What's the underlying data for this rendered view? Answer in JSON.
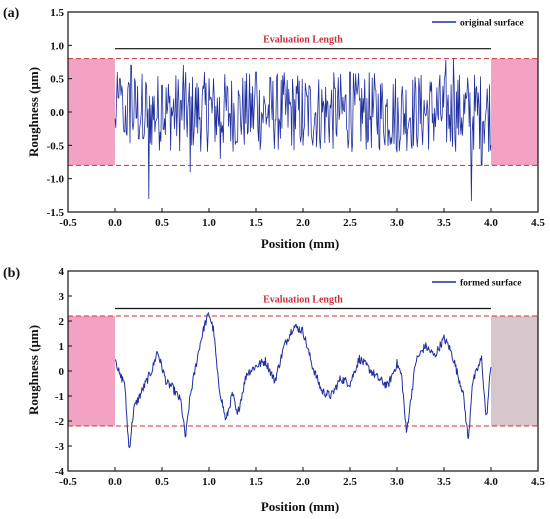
{
  "colors": {
    "signal": "#1f2fa0",
    "band_fill": "#f2a3c4",
    "dashed": "#c8303a",
    "eval_text": "#c8303a",
    "axis": "#111111",
    "right_band_b": "#d7c6cc"
  },
  "chart_data": [
    {
      "type": "line",
      "panel_label": "(a)",
      "xlabel": "Position (mm)",
      "ylabel": "Roughness (μm)",
      "xlim": [
        -0.5,
        4.5
      ],
      "ylim": [
        -1.5,
        1.5
      ],
      "xticks": [
        "-0.5",
        "0.0",
        "0.5",
        "1.0",
        "1.5",
        "2.0",
        "2.5",
        "3.0",
        "3.5",
        "4.0",
        "4.5"
      ],
      "yticks": [
        "-1.5",
        "-1.0",
        "-0.5",
        "0.0",
        "0.5",
        "1.0",
        "1.5"
      ],
      "grid": false,
      "legend_position": "top-right",
      "series": [
        {
          "name": "original surface",
          "x_range": [
            0.0,
            4.0
          ],
          "points_count": 500,
          "profile": "high-frequency random roughness mostly within ±0.75 µm",
          "y_keypoints": [
            [
              0.0,
              -0.1
            ],
            [
              0.05,
              0.5
            ],
            [
              0.1,
              -0.3
            ],
            [
              0.17,
              0.7
            ],
            [
              0.3,
              -0.4
            ],
            [
              0.36,
              -1.3
            ],
            [
              0.5,
              0.4
            ],
            [
              0.73,
              0.7
            ],
            [
              0.8,
              -0.9
            ],
            [
              1.0,
              0.5
            ],
            [
              1.12,
              -0.7
            ],
            [
              1.5,
              0.6
            ],
            [
              2.0,
              -0.5
            ],
            [
              2.5,
              0.6
            ],
            [
              3.0,
              -0.6
            ],
            [
              3.52,
              0.78
            ],
            [
              3.6,
              0.8
            ],
            [
              3.79,
              -1.33
            ],
            [
              3.9,
              -0.8
            ],
            [
              4.0,
              -0.5
            ]
          ]
        }
      ],
      "bands": {
        "left": [
          -0.5,
          0.0
        ],
        "right": [
          4.0,
          4.5
        ],
        "y_range": [
          -0.8,
          0.8
        ]
      },
      "dashed_lines_y": [
        0.8,
        -0.8
      ],
      "annotation": {
        "text": "Evaluation Length",
        "x_range": [
          0.0,
          4.0
        ],
        "y": 0.95
      }
    },
    {
      "type": "line",
      "panel_label": "(b)",
      "xlabel": "Position (mm)",
      "ylabel": "Roughness (μm)",
      "xlim": [
        -0.5,
        4.5
      ],
      "ylim": [
        -4,
        4
      ],
      "xticks": [
        "-0.5",
        "0.0",
        "0.5",
        "1.0",
        "1.5",
        "2.0",
        "2.5",
        "3.0",
        "3.5",
        "4.0",
        "4.5"
      ],
      "yticks": [
        "-4",
        "-3",
        "-2",
        "-1",
        "0",
        "1",
        "2",
        "3",
        "4"
      ],
      "grid": false,
      "legend_position": "top-right",
      "series": [
        {
          "name": "formed surface",
          "x_range": [
            0.0,
            4.0
          ],
          "y_keypoints": [
            [
              0.0,
              0.6
            ],
            [
              0.05,
              -0.2
            ],
            [
              0.1,
              -0.4
            ],
            [
              0.15,
              -3.2
            ],
            [
              0.2,
              -1.5
            ],
            [
              0.3,
              -0.7
            ],
            [
              0.4,
              0.1
            ],
            [
              0.45,
              0.8
            ],
            [
              0.55,
              -0.5
            ],
            [
              0.6,
              -0.6
            ],
            [
              0.7,
              -1.2
            ],
            [
              0.75,
              -2.7
            ],
            [
              0.8,
              -1.0
            ],
            [
              0.9,
              1.0
            ],
            [
              0.95,
              1.8
            ],
            [
              1.0,
              2.3
            ],
            [
              1.05,
              1.6
            ],
            [
              1.1,
              -0.5
            ],
            [
              1.18,
              -2.0
            ],
            [
              1.25,
              -0.9
            ],
            [
              1.3,
              -1.8
            ],
            [
              1.4,
              -0.1
            ],
            [
              1.5,
              0.2
            ],
            [
              1.6,
              0.4
            ],
            [
              1.7,
              -0.4
            ],
            [
              1.8,
              1.0
            ],
            [
              1.9,
              1.8
            ],
            [
              2.0,
              1.6
            ],
            [
              2.1,
              0.2
            ],
            [
              2.2,
              -0.8
            ],
            [
              2.3,
              -1.0
            ],
            [
              2.4,
              -0.3
            ],
            [
              2.5,
              -0.5
            ],
            [
              2.6,
              0.5
            ],
            [
              2.7,
              0.1
            ],
            [
              2.8,
              -0.3
            ],
            [
              2.9,
              -0.6
            ],
            [
              3.0,
              0.3
            ],
            [
              3.05,
              -0.2
            ],
            [
              3.1,
              -2.5
            ],
            [
              3.2,
              0.4
            ],
            [
              3.3,
              1.0
            ],
            [
              3.4,
              0.6
            ],
            [
              3.5,
              1.3
            ],
            [
              3.55,
              1.0
            ],
            [
              3.6,
              0.5
            ],
            [
              3.65,
              -0.2
            ],
            [
              3.7,
              -0.8
            ],
            [
              3.76,
              -2.8
            ],
            [
              3.8,
              -0.5
            ],
            [
              3.9,
              0.5
            ],
            [
              3.95,
              -2.0
            ],
            [
              4.0,
              0.3
            ]
          ]
        }
      ],
      "bands": {
        "left": [
          -0.5,
          0.0
        ],
        "right": [
          4.0,
          4.5
        ],
        "y_range": [
          -2.2,
          2.2
        ]
      },
      "dashed_lines_y": [
        2.2,
        -2.2
      ],
      "annotation": {
        "text": "Evaluation Length",
        "x_range": [
          0.0,
          4.0
        ],
        "y": 2.5
      }
    }
  ]
}
